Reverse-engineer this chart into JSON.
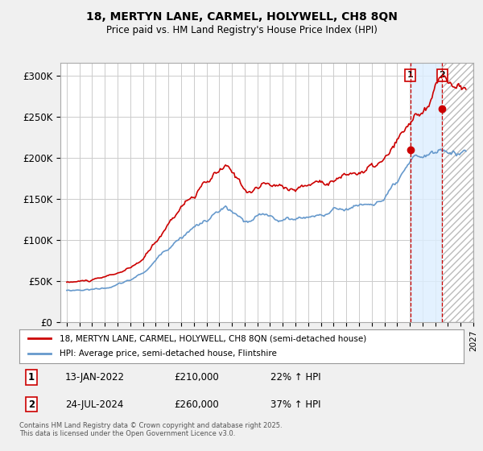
{
  "title": "18, MERTYN LANE, CARMEL, HOLYWELL, CH8 8QN",
  "subtitle": "Price paid vs. HM Land Registry's House Price Index (HPI)",
  "background_color": "#f0f0f0",
  "plot_background": "#ffffff",
  "grid_color": "#cccccc",
  "legend_line1": "18, MERTYN LANE, CARMEL, HOLYWELL, CH8 8QN (semi-detached house)",
  "legend_line2": "HPI: Average price, semi-detached house, Flintshire",
  "footnote": "Contains HM Land Registry data © Crown copyright and database right 2025.\nThis data is licensed under the Open Government Licence v3.0.",
  "sale1_date": "13-JAN-2022",
  "sale1_price": "£210,000",
  "sale1_hpi": "22% ↑ HPI",
  "sale2_date": "24-JUL-2024",
  "sale2_price": "£260,000",
  "sale2_hpi": "37% ↑ HPI",
  "red_color": "#cc0000",
  "blue_color": "#6699cc",
  "shade_color": "#ddeeff",
  "hatch_color": "#cccccc",
  "sale1_x": 2022.04,
  "sale2_x": 2024.56,
  "sale1_y": 210000,
  "sale2_y": 260000,
  "xmin": 1994.5,
  "xmax": 2027.0,
  "ylim": [
    0,
    315000
  ],
  "yticks": [
    0,
    50000,
    100000,
    150000,
    200000,
    250000,
    300000
  ],
  "ytick_labels": [
    "£0",
    "£50K",
    "£100K",
    "£150K",
    "£200K",
    "£250K",
    "£300K"
  ]
}
